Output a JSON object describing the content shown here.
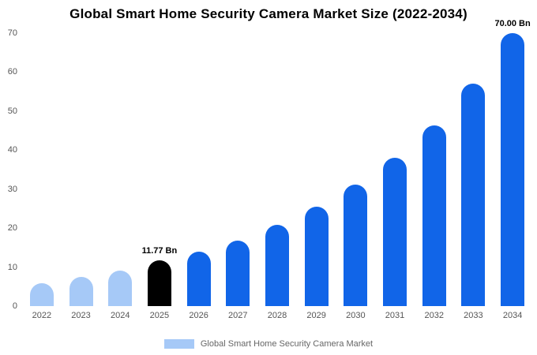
{
  "title": "Global Smart Home Security Camera Market Size (2022-2034)",
  "legend": {
    "label": "Global Smart Home Security Camera Market",
    "swatch_color": "#a6c9f7"
  },
  "colors": {
    "light_blue": "#a6c9f7",
    "primary_blue": "#1165e8",
    "highlight_black": "#000000",
    "axis_text": "#555555",
    "legend_text": "#666666"
  },
  "chart_data": {
    "type": "bar",
    "title": "Global Smart Home Security Camera Market Size (2022-2034)",
    "categories": [
      "2022",
      "2023",
      "2024",
      "2025",
      "2026",
      "2027",
      "2028",
      "2029",
      "2030",
      "2031",
      "2032",
      "2033",
      "2034"
    ],
    "values": [
      5.9,
      7.4,
      9.1,
      11.77,
      14.0,
      16.8,
      20.8,
      25.5,
      31.2,
      38.0,
      46.4,
      57.0,
      70.0
    ],
    "bar_colors": [
      "#a6c9f7",
      "#a6c9f7",
      "#a6c9f7",
      "#000000",
      "#1165e8",
      "#1165e8",
      "#1165e8",
      "#1165e8",
      "#1165e8",
      "#1165e8",
      "#1165e8",
      "#1165e8",
      "#1165e8"
    ],
    "annotations": [
      {
        "category": "2025",
        "text": "11.77 Bn"
      },
      {
        "category": "2034",
        "text": "70.00 Bn"
      }
    ],
    "xlabel": "",
    "ylabel": "",
    "ylim": [
      0,
      70
    ],
    "yticks": [
      0,
      10,
      20,
      30,
      40,
      50,
      60,
      70
    ],
    "grid": false,
    "legend_position": "bottom",
    "legend_entries": [
      "Global Smart Home Security Camera Market"
    ]
  }
}
